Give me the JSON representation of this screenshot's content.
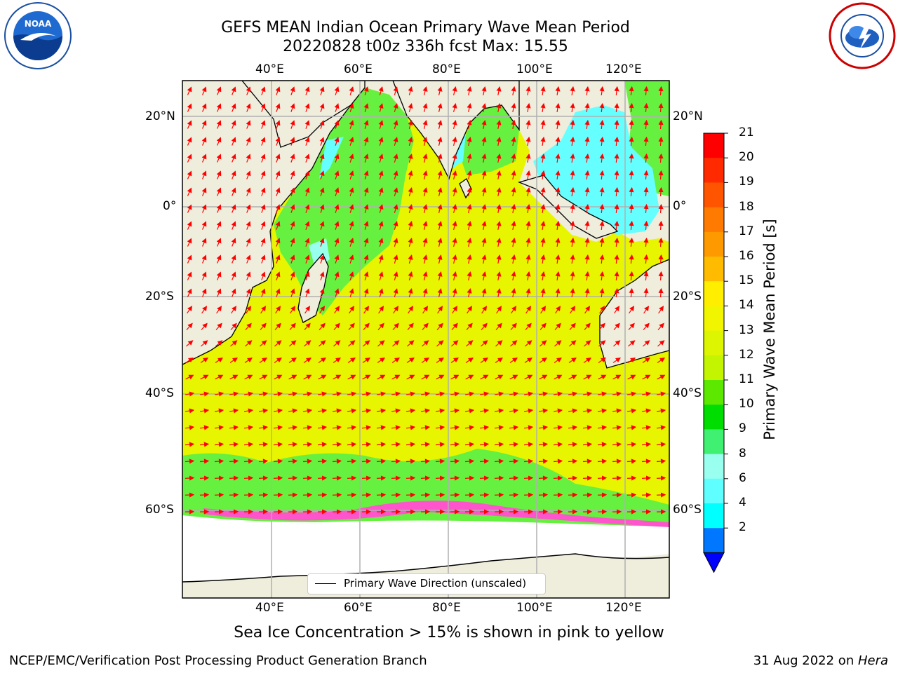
{
  "title": {
    "line1": "GEFS MEAN Indian Ocean Primary Wave Mean Period",
    "line2": "20220828 t00z 336h fcst   Max: 15.55"
  },
  "logos": {
    "left": "NOAA",
    "right": "NATIONAL WEATHER SERVICE"
  },
  "axes": {
    "lon_ticks": [
      "40°E",
      "60°E",
      "80°E",
      "100°E",
      "120°E"
    ],
    "lat_ticks": [
      "20°N",
      "0°",
      "20°S",
      "40°S",
      "60°S"
    ]
  },
  "legend": {
    "label": "Primary Wave Direction (unscaled)"
  },
  "colorbar": {
    "label": "Primary Wave Mean Period [s]",
    "ticks": [
      "21",
      "20",
      "19",
      "18",
      "17",
      "16",
      "15",
      "14",
      "13",
      "12",
      "11",
      "10",
      "9",
      "8",
      "6",
      "4",
      "2"
    ],
    "colors": [
      "#ff0000",
      "#ff2a00",
      "#ff5500",
      "#ff7a00",
      "#ff9900",
      "#ffbb00",
      "#ffee00",
      "#f2f500",
      "#ddf500",
      "#c3f500",
      "#5de800",
      "#00dd00",
      "#40f070",
      "#99ffee",
      "#60ffff",
      "#00ffff",
      "#0077ff"
    ],
    "extend_color": "#0000ff"
  },
  "caption": "Sea Ice Concentration > 15% is shown in pink to yellow",
  "footer": {
    "left": "NCEP/EMC/Verification Post Processing Product Generation Branch",
    "right_date": "31 Aug 2022 on ",
    "right_machine": "Hera"
  },
  "colors": {
    "land": "#efeddc",
    "ocean_main": "#e8f500",
    "ocean_green": "#66f040",
    "ocean_cyan": "#66ffff",
    "sea_ice": "#ff55cc",
    "arrow": "#ff0000"
  }
}
